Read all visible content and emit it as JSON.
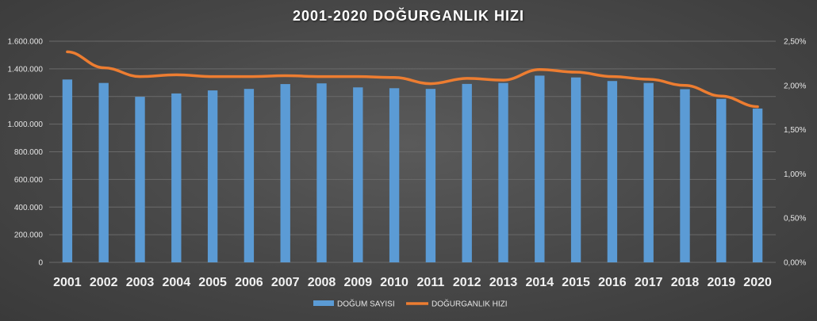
{
  "chart_data": {
    "type": "bar",
    "title": "2001-2020 DOĞURGANLIK  HIZI",
    "categories": [
      "2001",
      "2002",
      "2003",
      "2004",
      "2005",
      "2006",
      "2007",
      "2008",
      "2009",
      "2010",
      "2011",
      "2012",
      "2013",
      "2014",
      "2015",
      "2016",
      "2017",
      "2018",
      "2019",
      "2020"
    ],
    "series": [
      {
        "name": "DOĞUM SAYISI",
        "type": "bar",
        "axis": "left",
        "color": "#5B9BD5",
        "values": [
          1323000,
          1298000,
          1198000,
          1222000,
          1244000,
          1255000,
          1290000,
          1295000,
          1266000,
          1260000,
          1255000,
          1291000,
          1298000,
          1351000,
          1338000,
          1312000,
          1298000,
          1253000,
          1183000,
          1113000
        ]
      },
      {
        "name": "DOĞURGANLIK HIZI",
        "type": "line",
        "axis": "right",
        "color": "#ED7D31",
        "values": [
          2.38,
          2.2,
          2.1,
          2.12,
          2.1,
          2.1,
          2.11,
          2.1,
          2.1,
          2.09,
          2.02,
          2.08,
          2.06,
          2.18,
          2.15,
          2.1,
          2.07,
          2.0,
          1.88,
          1.76
        ]
      }
    ],
    "y_left": {
      "min": 0,
      "max": 1600000,
      "ticks": [
        "0",
        "200.000",
        "400.000",
        "600.000",
        "800.000",
        "1.000.000",
        "1.200.000",
        "1.400.000",
        "1.600.000"
      ]
    },
    "y_right": {
      "min": 0,
      "max": 2.5,
      "ticks": [
        "0,00%",
        "0,50%",
        "1,00%",
        "1,50%",
        "2,00%",
        "2,50%"
      ]
    },
    "grid": true,
    "legend_position": "bottom"
  }
}
